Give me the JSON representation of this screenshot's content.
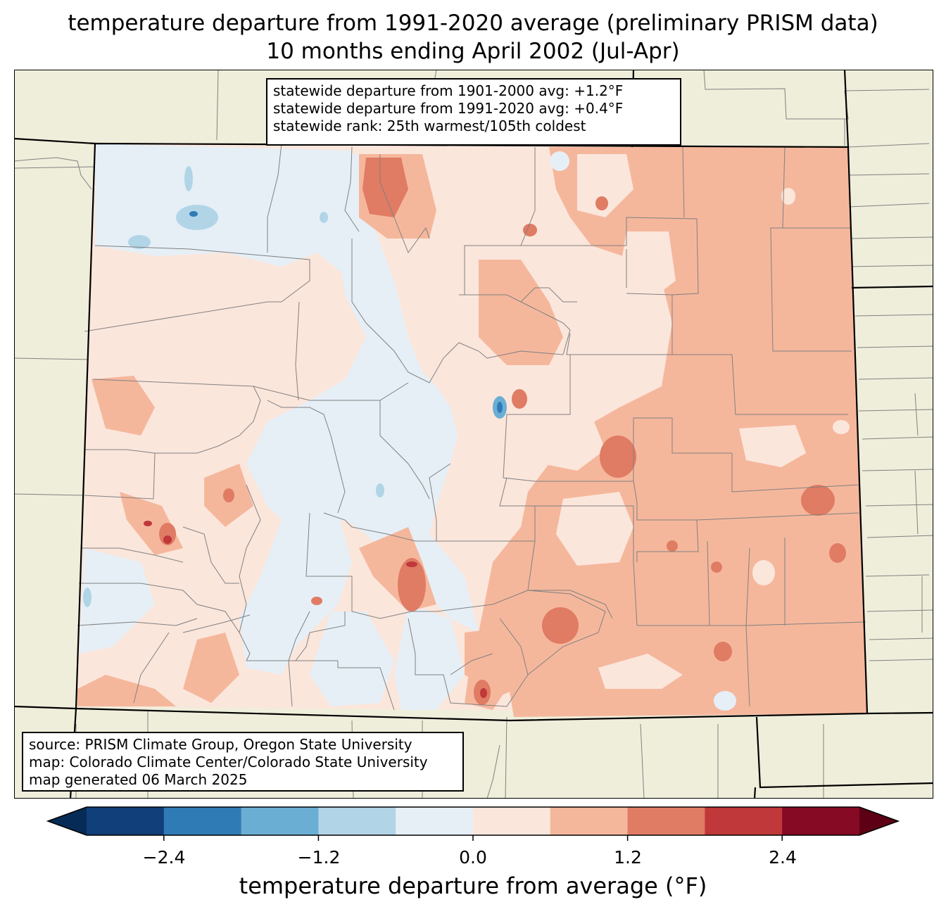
{
  "title_line1": "temperature departure from 1991-2020 average (preliminary PRISM data)",
  "title_line2": "10 months ending April 2002 (Jul-Apr)",
  "stats": {
    "line1": "statewide departure from 1901-2000 avg: +1.2°F",
    "line2": "statewide departure from 1991-2020 avg: +0.4°F",
    "line3": "statewide rank: 25th warmest/105th coldest"
  },
  "source": {
    "line1": "source: PRISM Climate Group, Oregon State University",
    "line2": "map: Colorado Climate Center/Colorado State University",
    "line3": "map generated 06 March 2025"
  },
  "colorbar": {
    "label": "temperature departure from average (°F)",
    "ticks": [
      "−2.4",
      "−1.2",
      "0.0",
      "1.2",
      "2.4"
    ],
    "bins": [
      -3.0,
      -2.4,
      -1.8,
      -1.2,
      -0.6,
      0.0,
      0.6,
      1.2,
      1.8,
      2.4,
      3.0
    ],
    "colors": [
      "#103f79",
      "#2f7bb6",
      "#6baed4",
      "#b1d5e7",
      "#e6eff6",
      "#fbe6dc",
      "#f5b79c",
      "#e07b64",
      "#c0383a",
      "#860a24"
    ],
    "extend_low_color": "#062b56",
    "extend_high_color": "#5d0015"
  },
  "map_colors": {
    "background": "#efeedb",
    "border": "#000000",
    "county_lines": "#808080"
  }
}
